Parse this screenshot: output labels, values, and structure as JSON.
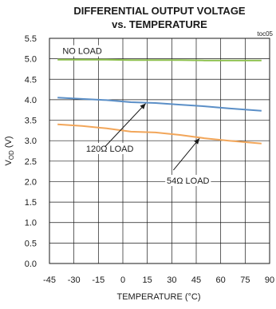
{
  "chart_data": {
    "type": "line",
    "title_line1": "DIFFERENTIAL OUTPUT VOLTAGE",
    "title_line2": "vs. TEMPERATURE",
    "figure_code": "toc05",
    "xlabel": "TEMPERATURE (°C)",
    "ylabel_main": "V",
    "ylabel_sub": "OD",
    "ylabel_unit": " (V)",
    "xlim": [
      -45,
      90
    ],
    "ylim": [
      0.0,
      5.5
    ],
    "x_ticks": [
      -45,
      -30,
      -15,
      0,
      15,
      30,
      45,
      60,
      75,
      90
    ],
    "x_tick_labels": [
      "-45",
      "-30",
      "-15",
      "0",
      "15",
      "30",
      "45",
      "60",
      "75",
      "90"
    ],
    "y_ticks": [
      0.0,
      0.5,
      1.0,
      1.5,
      2.0,
      2.5,
      3.0,
      3.5,
      4.0,
      4.5,
      5.0,
      5.5
    ],
    "y_tick_labels": [
      "0.0",
      "0.5",
      "1.0",
      "1.5",
      "2.0",
      "2.5",
      "3.0",
      "3.5",
      "4.0",
      "4.5",
      "5.0",
      "5.5"
    ],
    "grid": true,
    "series": [
      {
        "name": "NO LOAD",
        "color": "#8cc04b",
        "x": [
          -40,
          -25,
          -10,
          5,
          20,
          35,
          50,
          65,
          85
        ],
        "y": [
          4.98,
          4.98,
          4.98,
          4.97,
          4.97,
          4.97,
          4.96,
          4.96,
          4.96
        ]
      },
      {
        "name": "120Ω LOAD",
        "color": "#5b8fc7",
        "x": [
          -40,
          -25,
          -10,
          5,
          20,
          35,
          50,
          65,
          85
        ],
        "y": [
          4.05,
          4.02,
          3.99,
          3.94,
          3.92,
          3.88,
          3.84,
          3.79,
          3.73
        ]
      },
      {
        "name": "54Ω LOAD",
        "color": "#f2a65a",
        "x": [
          -40,
          -25,
          -10,
          5,
          20,
          35,
          50,
          65,
          85
        ],
        "y": [
          3.4,
          3.36,
          3.3,
          3.22,
          3.2,
          3.14,
          3.06,
          3.0,
          2.93
        ]
      }
    ],
    "annotations": [
      {
        "text": "NO LOAD",
        "series": "NO LOAD"
      },
      {
        "text": "120Ω LOAD",
        "series": "120Ω LOAD"
      },
      {
        "text": "54Ω LOAD",
        "series": "54Ω LOAD"
      }
    ]
  }
}
